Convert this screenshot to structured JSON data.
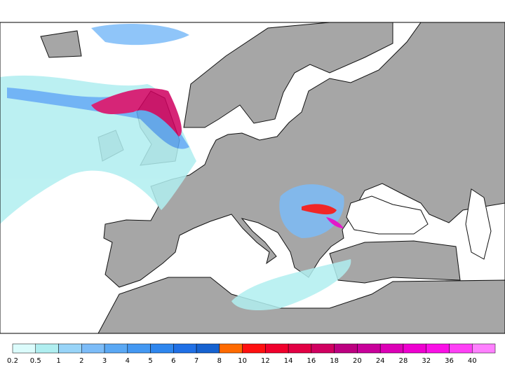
{
  "legend": {
    "labels": [
      "0.2",
      "0.5",
      "1",
      "2",
      "3",
      "4",
      "5",
      "6",
      "7",
      "8",
      "10",
      "12",
      "14",
      "16",
      "18",
      "20",
      "24",
      "28",
      "32",
      "36",
      "40"
    ],
    "colors": [
      "#dcfcfc",
      "#b0eef0",
      "#98d4f8",
      "#7cbcf8",
      "#5aa8f4",
      "#4498f2",
      "#2e86ee",
      "#2070e6",
      "#1662d0",
      "#ff6a00",
      "#ff1010",
      "#f0002c",
      "#e20044",
      "#d00060",
      "#bc0080",
      "#c8009a",
      "#dc00b6",
      "#ee00d0",
      "#fa10e6",
      "#ff40f6",
      "#ff80ff"
    ]
  }
}
